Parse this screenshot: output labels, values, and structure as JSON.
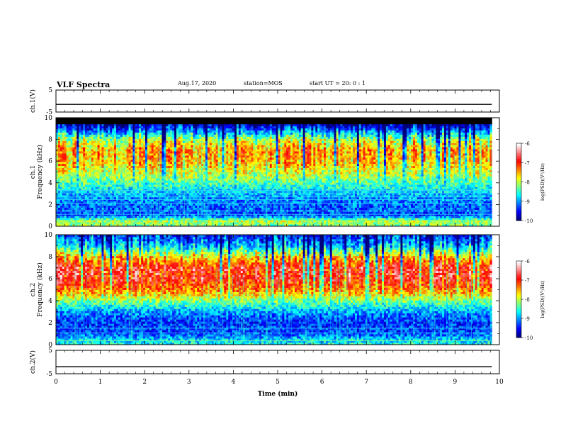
{
  "header": {
    "title": "VLF Spectra",
    "date": "Aug.17, 2020",
    "station": "station=MOS",
    "start": "start UT =  20: 0  : 1"
  },
  "colors": {
    "scale": [
      "#00007f",
      "#0000ff",
      "#007fff",
      "#00ffff",
      "#7fff7f",
      "#ffff00",
      "#ff7f00",
      "#ff0000",
      "#ff8080",
      "#ffffff"
    ],
    "masked_band": "#000000",
    "trace": "#000000"
  },
  "chart_data": [
    {
      "type": "line",
      "name": "waveform-ch1",
      "ylabel": "ch.1(V)",
      "ylim": [
        -5,
        5
      ],
      "yticks": [
        "5",
        "-5"
      ],
      "x": [
        0,
        9.83
      ],
      "values": [
        -1.5,
        -1.5
      ]
    },
    {
      "type": "heatmap",
      "name": "spectrogram-ch1",
      "ylabel_line1": "ch.1",
      "ylabel_line2": "Frequency (kHz)",
      "ylim": [
        0,
        10
      ],
      "yticks": [
        "0",
        "2",
        "4",
        "6",
        "8",
        "10"
      ],
      "xlim": [
        0,
        9.83
      ],
      "z_range": [
        -10,
        -6
      ],
      "colorbar": {
        "label": "log(PSD)(V²/Hz)",
        "ticks": [
          "-6",
          "-7",
          "-8",
          "-9",
          "-10"
        ]
      },
      "profile_freq_khz": [
        0,
        0.5,
        1,
        2,
        3,
        4,
        5,
        6,
        7,
        8,
        9,
        9.5
      ],
      "profile_log_psd": [
        -8.3,
        -8.0,
        -9.3,
        -9.2,
        -8.9,
        -8.4,
        -7.9,
        -7.6,
        -7.5,
        -8.1,
        -9.4,
        -10
      ],
      "masked_above_khz": 9.5,
      "tone_lines_khz": [
        0.3,
        0.55,
        1.1,
        1.4,
        2.1,
        2.45,
        2.7,
        3.05,
        3.3
      ]
    },
    {
      "type": "heatmap",
      "name": "spectrogram-ch2",
      "ylabel_line1": "ch.2",
      "ylabel_line2": "Frequency (kHz)",
      "ylim": [
        0,
        10
      ],
      "yticks": [
        "0",
        "2",
        "4",
        "6",
        "8",
        "10"
      ],
      "xlim": [
        0,
        9.83
      ],
      "z_range": [
        -10,
        -6
      ],
      "colorbar": {
        "label": "log(PSD)(V²/Hz)",
        "ticks": [
          "-6",
          "-7",
          "-8",
          "-9",
          "-10"
        ]
      },
      "profile_freq_khz": [
        0,
        0.5,
        1,
        2,
        3,
        4,
        5,
        6,
        7,
        8,
        9,
        10
      ],
      "profile_log_psd": [
        -8.6,
        -8.8,
        -9.3,
        -9.4,
        -9.0,
        -8.2,
        -7.3,
        -6.9,
        -6.9,
        -7.7,
        -8.9,
        -9.5
      ],
      "masked_above_khz": null,
      "tone_lines_khz": [
        0.35,
        1.05,
        1.5
      ]
    },
    {
      "type": "line",
      "name": "waveform-ch2",
      "ylabel": "ch.2(V)",
      "ylim": [
        -5,
        5
      ],
      "yticks": [
        "5",
        "-5"
      ],
      "x": [
        0,
        9.83
      ],
      "values": [
        -2.0,
        -2.0
      ]
    }
  ],
  "xaxis": {
    "label": "Time (min)",
    "range": [
      0,
      10
    ],
    "ticks": [
      "0",
      "1",
      "2",
      "3",
      "4",
      "5",
      "6",
      "7",
      "8",
      "9",
      "10"
    ]
  }
}
